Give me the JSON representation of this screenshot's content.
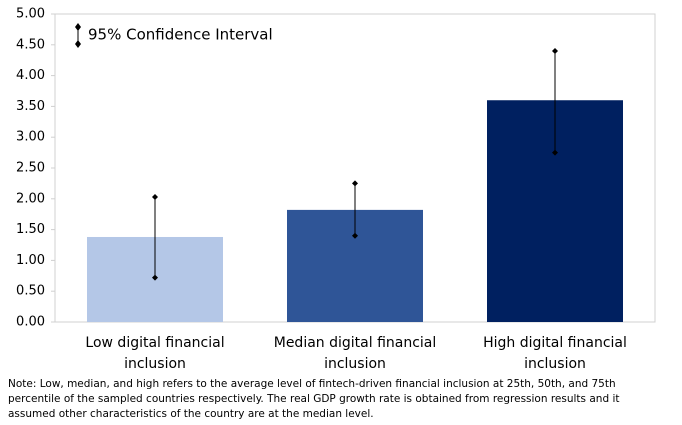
{
  "chart_data": {
    "type": "bar",
    "categories": [
      "Low digital financial\ninclusion",
      "Median digital financial\ninclusion",
      "High digital financial\ninclusion"
    ],
    "values": [
      1.38,
      1.82,
      3.6
    ],
    "ci_low": [
      0.72,
      1.4,
      2.75
    ],
    "ci_high": [
      2.03,
      2.25,
      4.4
    ],
    "colors": [
      "#b4c7e7",
      "#2f5597",
      "#002060"
    ],
    "ylim": [
      0,
      5
    ],
    "yticks": [
      {
        "value": 0,
        "label": "0.00"
      },
      {
        "value": 0.5,
        "label": "0.50"
      },
      {
        "value": 1,
        "label": "1.00"
      },
      {
        "value": 1.5,
        "label": "1.50"
      },
      {
        "value": 2,
        "label": "2.00"
      },
      {
        "value": 2.5,
        "label": "2.50"
      },
      {
        "value": 3,
        "label": "3.00"
      },
      {
        "value": 3.5,
        "label": "3.50"
      },
      {
        "value": 4,
        "label": "4.00"
      },
      {
        "value": 4.5,
        "label": "4.50"
      },
      {
        "value": 5,
        "label": "5.00"
      }
    ],
    "legend": "95% Confidence Interval",
    "note": "Note: Low, median, and high refers to the average level of fintech-driven financial inclusion at 25th, 50th, and 75th percentile of the sampled countries respectively. The real GDP growth rate is obtained from regression results and it assumed other characteristics of the country are at the median level."
  }
}
